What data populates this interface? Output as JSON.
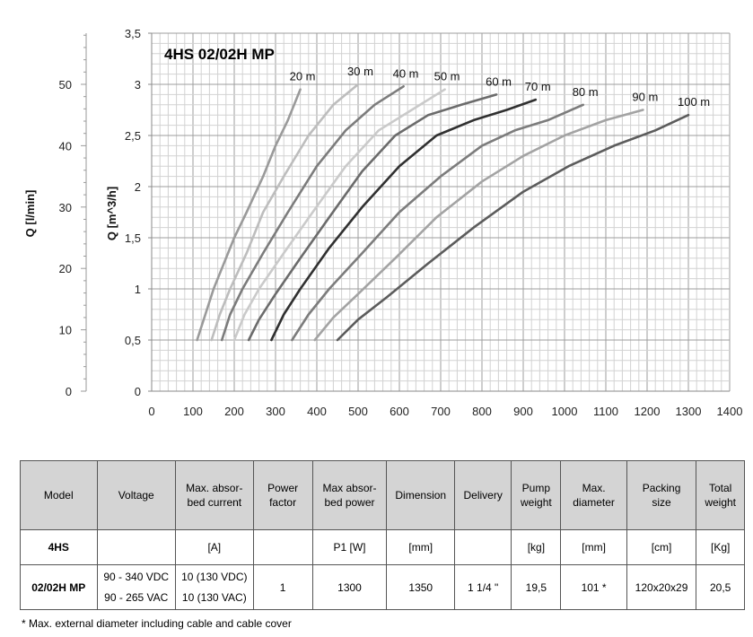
{
  "chart_data": {
    "type": "line",
    "title": "4HS 02/02H MP",
    "xlabel": "",
    "ylabel": "Q [m^3/h]",
    "y2label": "Q [l/min]",
    "xlim": [
      0,
      1400
    ],
    "ylim": [
      0,
      3.5
    ],
    "y2lim": [
      0,
      58.33
    ],
    "x_ticks": [
      "0",
      "100",
      "200",
      "300",
      "400",
      "500",
      "600",
      "700",
      "800",
      "900",
      "1000",
      "1100",
      "1200",
      "1300",
      "1400"
    ],
    "y_ticks": [
      "0",
      "0,5",
      "1",
      "1,5",
      "2",
      "2,5",
      "3",
      "3,5"
    ],
    "y2_ticks": [
      "0",
      "10",
      "20",
      "30",
      "40",
      "50"
    ],
    "grid": true,
    "legend": "none",
    "series": [
      {
        "name": "20 m",
        "color": "#9a9a9a",
        "x": [
          110,
          130,
          150,
          170,
          200,
          230,
          270,
          300,
          330,
          360
        ],
        "y": [
          0.5,
          0.75,
          1.0,
          1.2,
          1.5,
          1.75,
          2.1,
          2.4,
          2.65,
          2.95
        ]
      },
      {
        "name": "30 m",
        "color": "#bdbdbd",
        "x": [
          145,
          165,
          190,
          230,
          270,
          320,
          380,
          440,
          500
        ],
        "y": [
          0.5,
          0.75,
          1.0,
          1.35,
          1.75,
          2.1,
          2.5,
          2.8,
          3.0
        ]
      },
      {
        "name": "40 m",
        "color": "#7c7c7c",
        "x": [
          170,
          190,
          220,
          270,
          330,
          400,
          470,
          540,
          610
        ],
        "y": [
          0.5,
          0.75,
          1.0,
          1.35,
          1.75,
          2.2,
          2.55,
          2.8,
          2.98
        ]
      },
      {
        "name": "50 m",
        "color": "#cacaca",
        "x": [
          200,
          225,
          260,
          320,
          390,
          470,
          550,
          630,
          710
        ],
        "y": [
          0.5,
          0.75,
          1.0,
          1.35,
          1.75,
          2.2,
          2.55,
          2.75,
          2.95
        ]
      },
      {
        "name": "60 m",
        "color": "#6b6b6b",
        "x": [
          235,
          260,
          300,
          360,
          430,
          510,
          590,
          670,
          750,
          835
        ],
        "y": [
          0.5,
          0.7,
          0.95,
          1.3,
          1.7,
          2.15,
          2.5,
          2.7,
          2.8,
          2.9
        ]
      },
      {
        "name": "70 m",
        "color": "#303030",
        "x": [
          290,
          320,
          360,
          430,
          510,
          600,
          690,
          780,
          860,
          930
        ],
        "y": [
          0.5,
          0.75,
          1.0,
          1.4,
          1.8,
          2.2,
          2.5,
          2.65,
          2.75,
          2.85
        ]
      },
      {
        "name": "80 m",
        "color": "#7c7c7c",
        "x": [
          340,
          380,
          430,
          510,
          600,
          700,
          800,
          880,
          960,
          1045
        ],
        "y": [
          0.5,
          0.75,
          1.0,
          1.35,
          1.75,
          2.1,
          2.4,
          2.55,
          2.65,
          2.8
        ]
      },
      {
        "name": "90 m",
        "color": "#a3a3a3",
        "x": [
          395,
          440,
          500,
          590,
          690,
          800,
          900,
          1000,
          1100,
          1190
        ],
        "y": [
          0.5,
          0.72,
          0.95,
          1.3,
          1.7,
          2.05,
          2.3,
          2.5,
          2.65,
          2.75
        ]
      },
      {
        "name": "100 m",
        "color": "#5c5c5c",
        "x": [
          450,
          500,
          570,
          670,
          780,
          900,
          1010,
          1120,
          1220,
          1300
        ],
        "y": [
          0.5,
          0.7,
          0.92,
          1.25,
          1.6,
          1.95,
          2.2,
          2.4,
          2.55,
          2.7
        ]
      }
    ]
  },
  "table": {
    "headers": [
      "Model",
      "Voltage",
      "Max. absor-\nbed current",
      "Power\nfactor",
      "Max absor-\nbed power",
      "Dimension",
      "Delivery",
      "Pump\nweight",
      "Max.\ndiameter",
      "Packing\nsize",
      "Total\nweight"
    ],
    "units_row": {
      "model": "4HS",
      "voltage": "",
      "current": "[A]",
      "power_factor": "",
      "power": "P1 [W]",
      "dimension": "[mm]",
      "delivery": "",
      "pump_weight": "[kg]",
      "diameter": "[mm]",
      "packing": "[cm]",
      "total_weight": "[Kg]"
    },
    "data_row": {
      "model": "02/02H MP",
      "voltage_1": "90 - 340 VDC",
      "voltage_2": "90 - 265 VAC",
      "current_1": "10 (130 VDC)",
      "current_2": "10 (130 VAC)",
      "power_factor": "1",
      "power": "1300",
      "dimension": "1350",
      "delivery": "1 1/4 \"",
      "pump_weight": "19,5",
      "diameter": "101 *",
      "packing": "120x20x29",
      "total_weight": "20,5"
    }
  },
  "footnote": "* Max. external diameter including cable and cable cover"
}
